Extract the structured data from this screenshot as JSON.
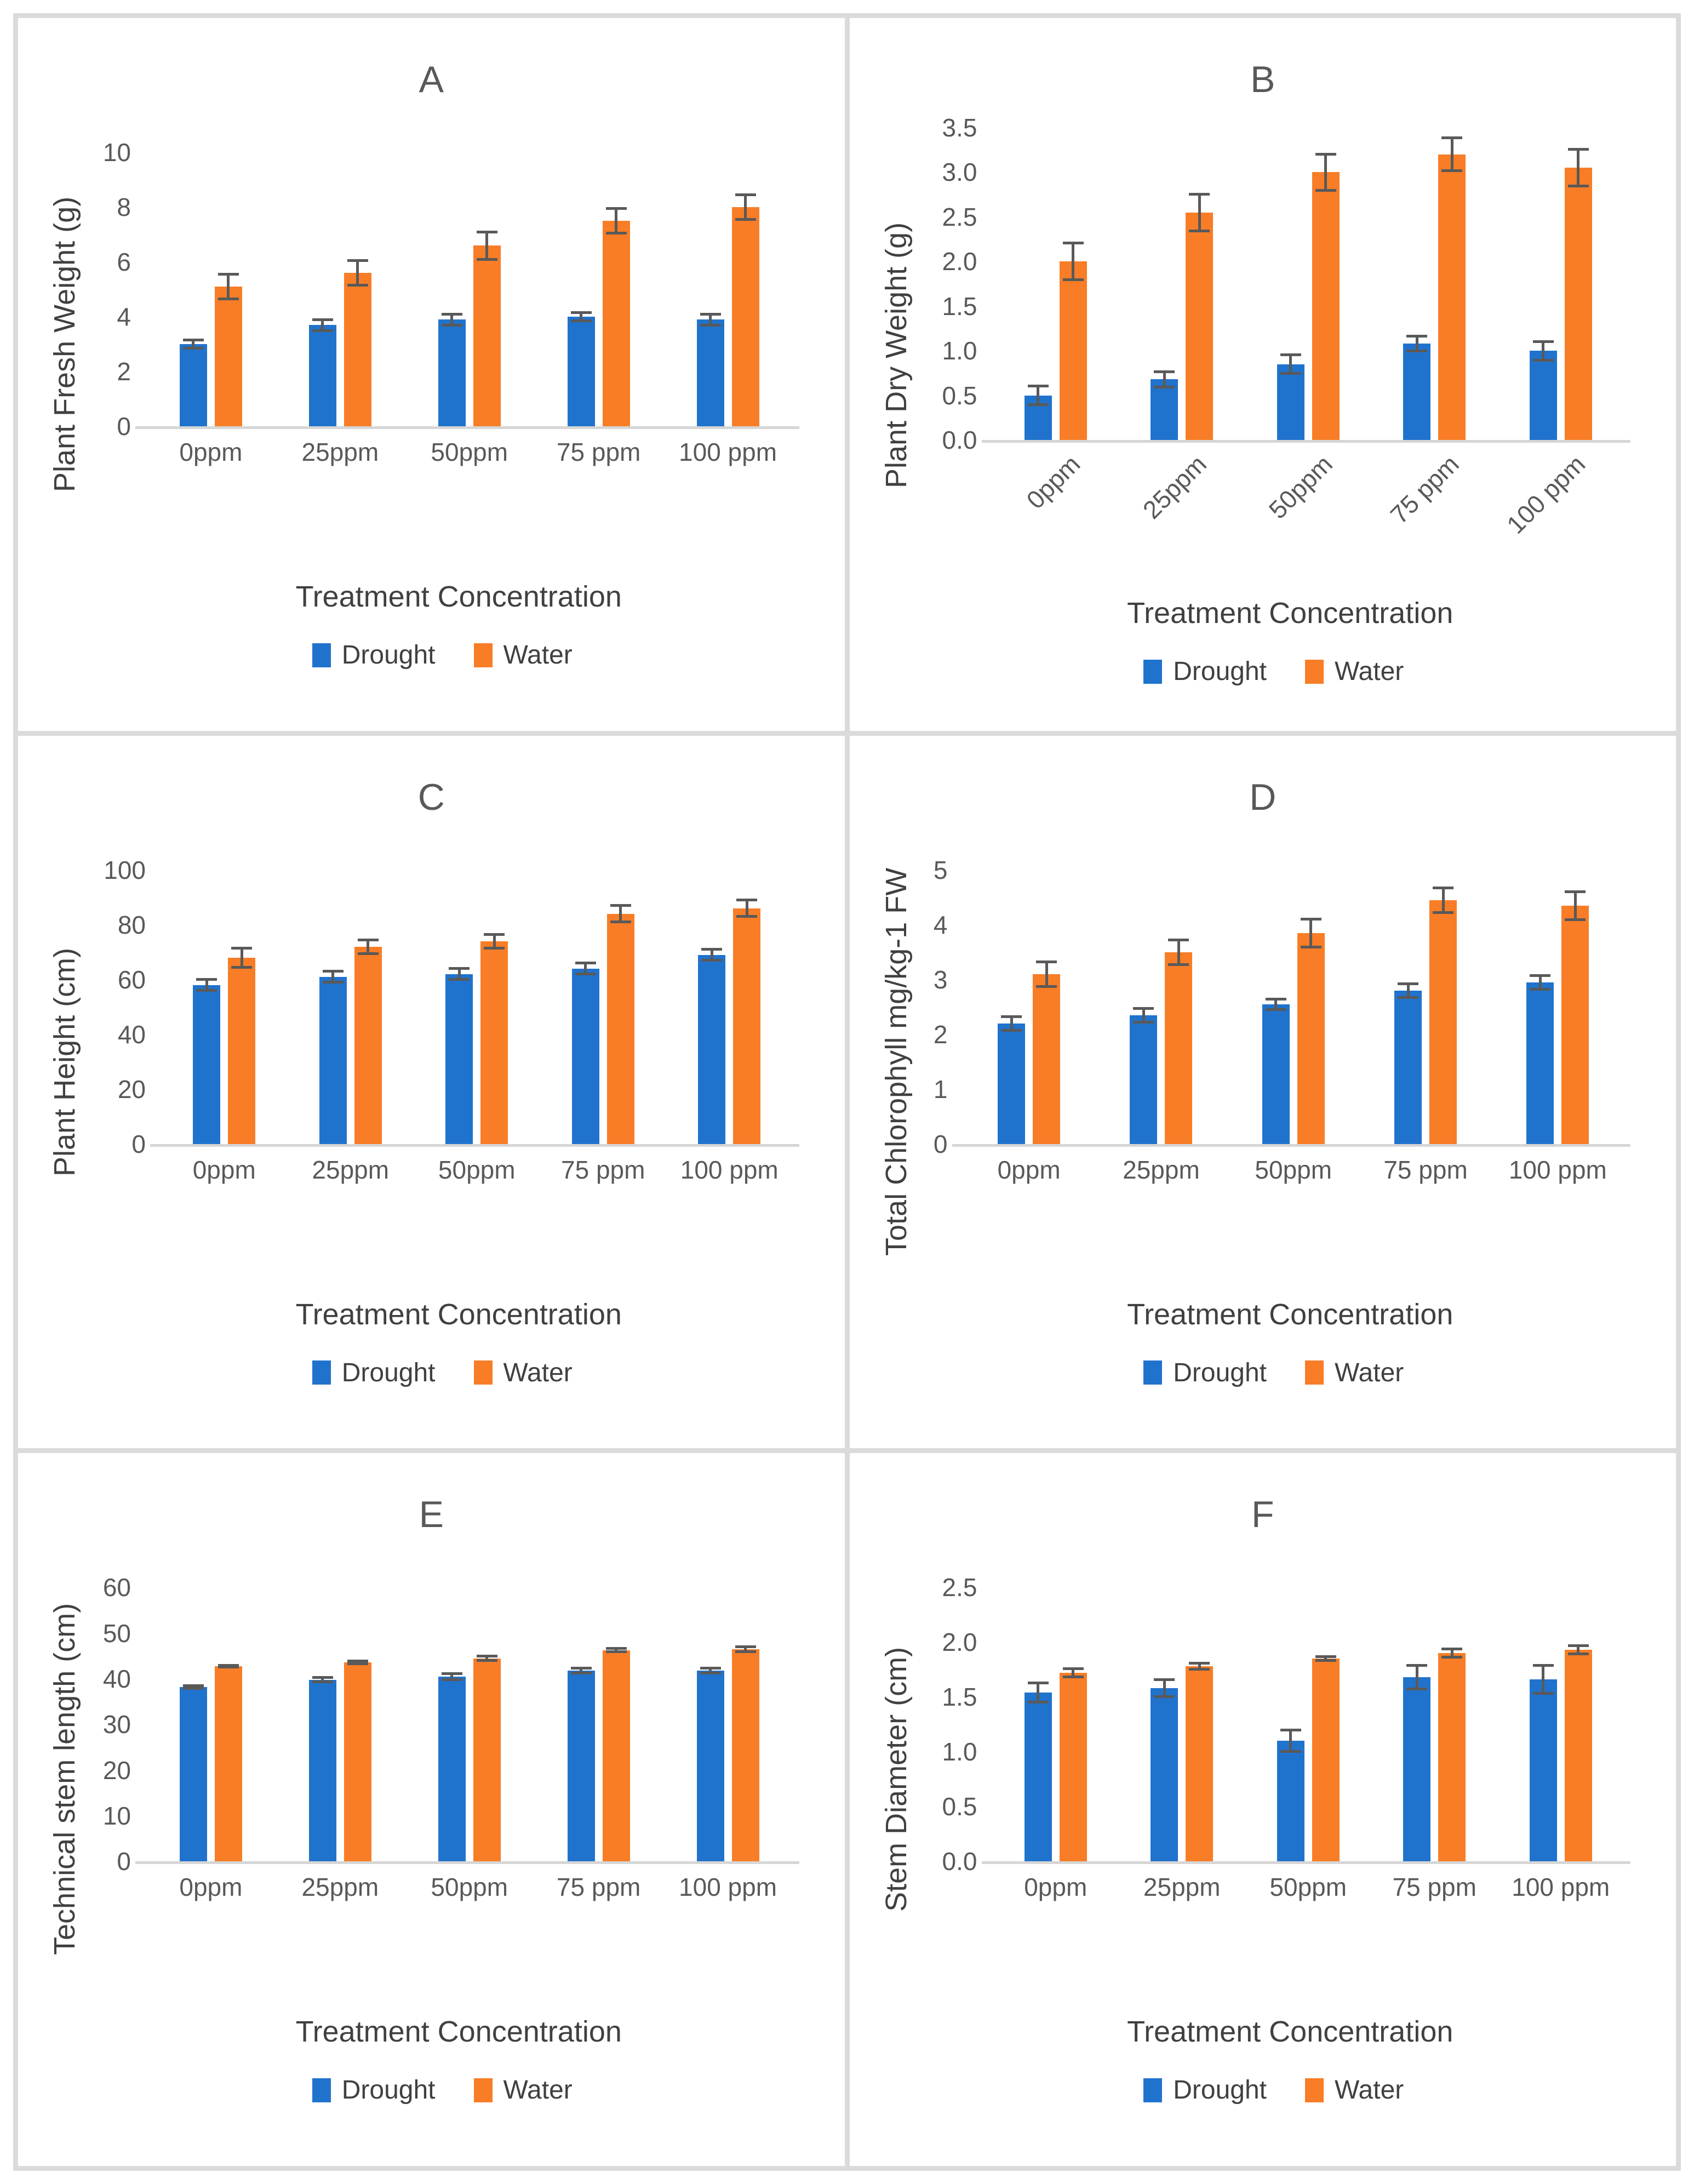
{
  "figure": {
    "colors": {
      "drought": "#2073CD",
      "water": "#F87D26",
      "error_bar": "#595959",
      "axis_line": "#D6D6D6",
      "tick_text": "#595959",
      "axis_title_text": "#404040",
      "panel_title_text": "#595959",
      "panel_border": "#DBDBDB"
    },
    "panels": [
      "A",
      "B",
      "C",
      "D",
      "E",
      "F"
    ]
  },
  "chart_data": [
    {
      "type": "bar",
      "title": "A",
      "ylabel": "Plant Fresh Weight (g)",
      "xlabel": "Treatment Concentration",
      "categories": [
        "0ppm",
        "25ppm",
        "50ppm",
        "75 ppm",
        "100 ppm"
      ],
      "ylim": [
        0,
        10
      ],
      "yticks": [
        0,
        2,
        4,
        6,
        8,
        10
      ],
      "ytick_labels": [
        "0",
        "2",
        "4",
        "6",
        "8",
        "10"
      ],
      "rotated_x_labels": false,
      "grid": false,
      "legend_position": "bottom",
      "series": [
        {
          "name": "Drought",
          "color_key": "drought",
          "values": [
            3.0,
            3.7,
            3.9,
            4.0,
            3.9
          ],
          "errors": [
            0.2,
            0.25,
            0.25,
            0.2,
            0.25
          ]
        },
        {
          "name": "Water",
          "color_key": "water",
          "values": [
            5.1,
            5.6,
            6.6,
            7.5,
            8.0
          ],
          "errors": [
            0.5,
            0.5,
            0.55,
            0.5,
            0.5
          ]
        }
      ]
    },
    {
      "type": "bar",
      "title": "B",
      "ylabel": "Plant Dry Weight (g)",
      "xlabel": "Treatment Concentration",
      "categories": [
        "0ppm",
        "25ppm",
        "50ppm",
        "75 ppm",
        "100 ppm"
      ],
      "ylim": [
        0,
        3.5
      ],
      "yticks": [
        0,
        0.5,
        1.0,
        1.5,
        2.0,
        2.5,
        3.0,
        3.5
      ],
      "ytick_labels": [
        "0.0",
        "0.5",
        "1.0",
        "1.5",
        "2.0",
        "2.5",
        "3.0",
        "3.5"
      ],
      "rotated_x_labels": true,
      "grid": false,
      "legend_position": "bottom",
      "series": [
        {
          "name": "Drought",
          "color_key": "drought",
          "values": [
            0.5,
            0.68,
            0.85,
            1.08,
            1.0
          ],
          "errors": [
            0.12,
            0.1,
            0.12,
            0.1,
            0.12
          ]
        },
        {
          "name": "Water",
          "color_key": "water",
          "values": [
            2.0,
            2.55,
            3.0,
            3.2,
            3.05
          ],
          "errors": [
            0.22,
            0.22,
            0.22,
            0.2,
            0.22
          ]
        }
      ]
    },
    {
      "type": "bar",
      "title": "C",
      "ylabel": "Plant Height (cm)",
      "xlabel": "Treatment Concentration",
      "categories": [
        "0ppm",
        "25ppm",
        "50ppm",
        "75 ppm",
        "100 ppm"
      ],
      "ylim": [
        0,
        100
      ],
      "yticks": [
        0,
        20,
        40,
        60,
        80,
        100
      ],
      "ytick_labels": [
        "0",
        "20",
        "40",
        "60",
        "80",
        "100"
      ],
      "rotated_x_labels": false,
      "grid": false,
      "legend_position": "bottom",
      "series": [
        {
          "name": "Drought",
          "color_key": "drought",
          "values": [
            58,
            61,
            62,
            64,
            69
          ],
          "errors": [
            2.5,
            2.5,
            2.5,
            2.5,
            2.5
          ]
        },
        {
          "name": "Water",
          "color_key": "water",
          "values": [
            68,
            72,
            74,
            84,
            86
          ],
          "errors": [
            4,
            3,
            3,
            3.5,
            3.5
          ]
        }
      ]
    },
    {
      "type": "bar",
      "title": "D",
      "ylabel": "Total Chlorophyll mg/kg-1 FW",
      "xlabel": "Treatment Concentration",
      "categories": [
        "0ppm",
        "25ppm",
        "50ppm",
        "75 ppm",
        "100 ppm"
      ],
      "ylim": [
        0,
        5
      ],
      "yticks": [
        0,
        1,
        2,
        3,
        4,
        5
      ],
      "ytick_labels": [
        "0",
        "1",
        "2",
        "3",
        "4",
        "5"
      ],
      "rotated_x_labels": false,
      "grid": false,
      "legend_position": "bottom",
      "series": [
        {
          "name": "Drought",
          "color_key": "drought",
          "values": [
            2.2,
            2.35,
            2.55,
            2.8,
            2.95
          ],
          "errors": [
            0.15,
            0.15,
            0.12,
            0.15,
            0.15
          ]
        },
        {
          "name": "Water",
          "color_key": "water",
          "values": [
            3.1,
            3.5,
            3.85,
            4.45,
            4.35
          ],
          "errors": [
            0.25,
            0.25,
            0.28,
            0.25,
            0.28
          ]
        }
      ]
    },
    {
      "type": "bar",
      "title": "E",
      "ylabel": "Technical stem length (cm)",
      "xlabel": "Treatment Concentration",
      "categories": [
        "0ppm",
        "25ppm",
        "50ppm",
        "75 ppm",
        "100 ppm"
      ],
      "ylim": [
        0,
        60
      ],
      "yticks": [
        0,
        10,
        20,
        30,
        40,
        50,
        60
      ],
      "ytick_labels": [
        "0",
        "10",
        "20",
        "30",
        "40",
        "50",
        "60"
      ],
      "rotated_x_labels": false,
      "grid": false,
      "legend_position": "bottom",
      "series": [
        {
          "name": "Drought",
          "color_key": "drought",
          "values": [
            38.2,
            39.8,
            40.5,
            41.8,
            41.8
          ],
          "errors": [
            0.6,
            0.8,
            1.0,
            0.8,
            0.8
          ]
        },
        {
          "name": "Water",
          "color_key": "water",
          "values": [
            42.8,
            43.6,
            44.5,
            46.3,
            46.5
          ],
          "errors": [
            0.5,
            0.6,
            0.8,
            0.7,
            0.8
          ]
        }
      ]
    },
    {
      "type": "bar",
      "title": "F",
      "ylabel": "Stem Diameter (cm)",
      "xlabel": "Treatment Concentration",
      "categories": [
        "0ppm",
        "25ppm",
        "50ppm",
        "75 ppm",
        "100 ppm"
      ],
      "ylim": [
        0,
        2.5
      ],
      "yticks": [
        0,
        0.5,
        1.0,
        1.5,
        2.0,
        2.5
      ],
      "ytick_labels": [
        "0.0",
        "0.5",
        "1.0",
        "1.5",
        "2.0",
        "2.5"
      ],
      "rotated_x_labels": false,
      "grid": false,
      "legend_position": "bottom",
      "series": [
        {
          "name": "Drought",
          "color_key": "drought",
          "values": [
            1.54,
            1.58,
            1.1,
            1.68,
            1.66
          ],
          "errors": [
            0.1,
            0.09,
            0.11,
            0.12,
            0.14
          ]
        },
        {
          "name": "Water",
          "color_key": "water",
          "values": [
            1.72,
            1.78,
            1.85,
            1.9,
            1.93
          ],
          "errors": [
            0.05,
            0.04,
            0.03,
            0.05,
            0.05
          ]
        }
      ]
    }
  ]
}
